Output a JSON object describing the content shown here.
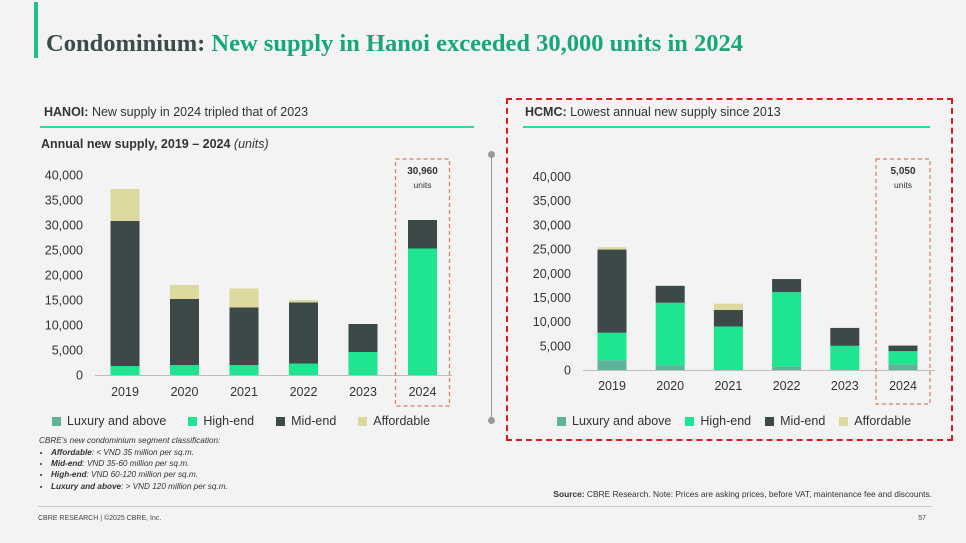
{
  "title": {
    "prefix": "Condominium:",
    "main": "New supply in Hanoi exceeded 30,000 units in 2024"
  },
  "hanoi": {
    "label": "HANOI:",
    "headline": "New supply in 2024 tripled that of 2023",
    "subtitle": "Annual new supply, 2019 – 2024",
    "subtitle_unit": "(units)",
    "callout_value": "30,960",
    "callout_unit": "units"
  },
  "hcmc": {
    "label": "HCMC:",
    "headline": "Lowest annual new supply since 2013",
    "callout_value": "5,050",
    "callout_unit": "units"
  },
  "legend": [
    "Luxury and above",
    "High-end",
    "Mid-end",
    "Affordable"
  ],
  "colors": {
    "luxury": "#5fb39b",
    "high_end": "#1ee58f",
    "mid_end": "#3b4a48",
    "affordable": "#dcd89e",
    "accent": "#17a77a",
    "callout_border": "#e07a5f",
    "hcmc_highlight": "#e0191c"
  },
  "segment_notes": {
    "header": "CBRE's new condominium segment classification:",
    "items": [
      {
        "name": "Affordable",
        "desc": ": < VND 35 million per sq.m."
      },
      {
        "name": "Mid-end",
        "desc": ": VND 35-60 million per sq.m."
      },
      {
        "name": "High-end",
        "desc": ": VND 60-120 million per sq.m."
      },
      {
        "name": "Luxury and above",
        "desc": ": > VND 120 million per sq.m."
      }
    ]
  },
  "source": {
    "label": "Source:",
    "text": " CBRE Research. Note: Prices are asking prices, before VAT, maintenance fee and discounts."
  },
  "footer": "CBRE RESEARCH | ©2025 CBRE, Inc.",
  "page_number": "57",
  "chart_data": [
    {
      "type": "bar",
      "stacked": true,
      "categories": [
        "2019",
        "2020",
        "2021",
        "2022",
        "2023",
        "2024"
      ],
      "ylim": [
        0,
        40000
      ],
      "yticks": [
        "0",
        "5,000",
        "10,000",
        "15,000",
        "20,000",
        "25,000",
        "30,000",
        "35,000",
        "40,000"
      ],
      "series": [
        {
          "name": "Luxury and above",
          "values": [
            0,
            0,
            0,
            0,
            0,
            0
          ]
        },
        {
          "name": "High-end",
          "values": [
            1800,
            2000,
            2000,
            2300,
            4600,
            25300
          ]
        },
        {
          "name": "Mid-end",
          "values": [
            29000,
            13200,
            11500,
            12200,
            5600,
            5700
          ]
        },
        {
          "name": "Affordable",
          "values": [
            6400,
            2800,
            3800,
            500,
            0,
            0
          ]
        }
      ],
      "annotation": "30,960 units",
      "highlighted_category": "2024",
      "legend_position": "bottom"
    },
    {
      "type": "bar",
      "stacked": true,
      "categories": [
        "2019",
        "2020",
        "2021",
        "2022",
        "2023",
        "2024"
      ],
      "ylim": [
        0,
        40000
      ],
      "yticks": [
        "0",
        "5,000",
        "10,000",
        "15,000",
        "20,000",
        "25,000",
        "30,000",
        "35,000",
        "40,000"
      ],
      "series": [
        {
          "name": "Luxury and above",
          "values": [
            2000,
            1000,
            0,
            700,
            0,
            1200
          ]
        },
        {
          "name": "High-end",
          "values": [
            5700,
            12900,
            9000,
            15400,
            5000,
            2700
          ]
        },
        {
          "name": "Mid-end",
          "values": [
            17200,
            3500,
            3400,
            2700,
            3700,
            1150
          ]
        },
        {
          "name": "Affordable",
          "values": [
            500,
            0,
            1300,
            0,
            0,
            0
          ]
        }
      ],
      "annotation": "5,050 units",
      "highlighted_category": "2024",
      "legend_position": "bottom"
    }
  ]
}
